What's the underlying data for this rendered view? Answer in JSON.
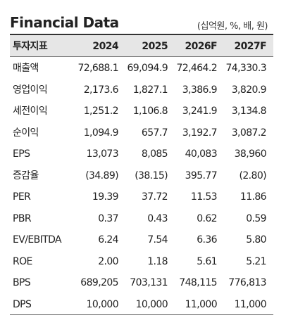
{
  "header": {
    "title": "Financial Data",
    "unit": "(십억원, %, 배, 원)"
  },
  "table": {
    "columns": [
      "투자지표",
      "2024",
      "2025",
      "2026F",
      "2027F"
    ],
    "rows": [
      [
        "매출액",
        "72,688.1",
        "69,094.9",
        "72,464.2",
        "74,330.3"
      ],
      [
        "영업이익",
        "2,173.6",
        "1,827.1",
        "3,386.9",
        "3,820.9"
      ],
      [
        "세전이익",
        "1,251.2",
        "1,106.8",
        "3,241.9",
        "3,134.8"
      ],
      [
        "순이익",
        "1,094.9",
        "657.7",
        "3,192.7",
        "3,087.2"
      ],
      [
        "EPS",
        "13,073",
        "8,085",
        "40,083",
        "38,960"
      ],
      [
        "증감율",
        "(34.89)",
        "(38.15)",
        "395.77",
        "(2.80)"
      ],
      [
        "PER",
        "19.39",
        "37.72",
        "11.53",
        "11.86"
      ],
      [
        "PBR",
        "0.37",
        "0.43",
        "0.62",
        "0.59"
      ],
      [
        "EV/EBITDA",
        "6.24",
        "7.54",
        "6.36",
        "5.80"
      ],
      [
        "ROE",
        "2.00",
        "1.18",
        "5.61",
        "5.21"
      ],
      [
        "BPS",
        "689,205",
        "703,131",
        "748,115",
        "776,813"
      ],
      [
        "DPS",
        "10,000",
        "10,000",
        "11,000",
        "11,000"
      ]
    ]
  }
}
